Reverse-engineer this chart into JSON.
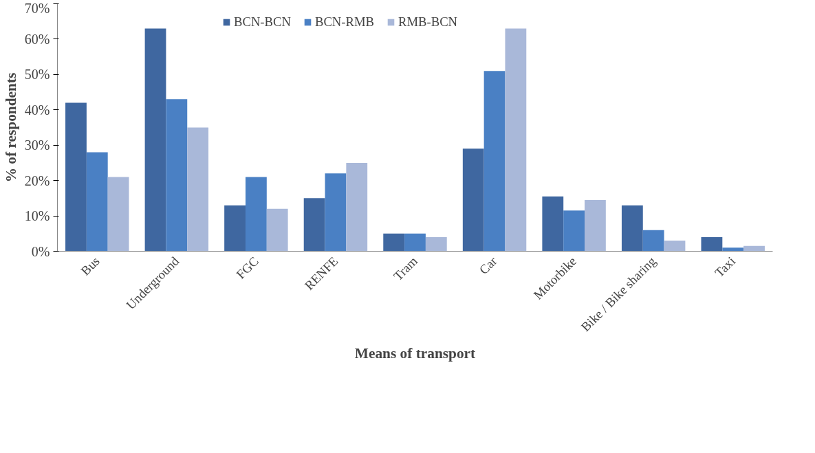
{
  "chart_data": {
    "type": "bar",
    "xlabel": "Means of transport",
    "ylabel": "% of respondents",
    "categories": [
      "Bus",
      "Underground",
      "FGC",
      "RENFE",
      "Tram",
      "Car",
      "Motorbike",
      "Bike / Bike sharing",
      "Taxi"
    ],
    "series": [
      {
        "name": "BCN-BCN",
        "color": "#3f67a0",
        "values": [
          42,
          63,
          13,
          15,
          5,
          29,
          15.5,
          13,
          4
        ]
      },
      {
        "name": "BCN-RMB",
        "color": "#4a80c4",
        "values": [
          28,
          43,
          21,
          22,
          5,
          51,
          11.5,
          6,
          1
        ]
      },
      {
        "name": "RMB-BCN",
        "color": "#a9b8d9",
        "values": [
          21,
          35,
          12,
          25,
          4,
          63,
          14.5,
          3,
          1.5
        ]
      }
    ],
    "ylim": [
      0,
      70
    ],
    "yticks": [
      {
        "value": 0,
        "label": "0%"
      },
      {
        "value": 10,
        "label": "10%"
      },
      {
        "value": 20,
        "label": "20%"
      },
      {
        "value": 30,
        "label": "30%"
      },
      {
        "value": 40,
        "label": "40%"
      },
      {
        "value": 50,
        "label": "50%"
      },
      {
        "value": 60,
        "label": "60%"
      },
      {
        "value": 70,
        "label": "70%"
      }
    ],
    "grid": false,
    "legend": "top"
  }
}
